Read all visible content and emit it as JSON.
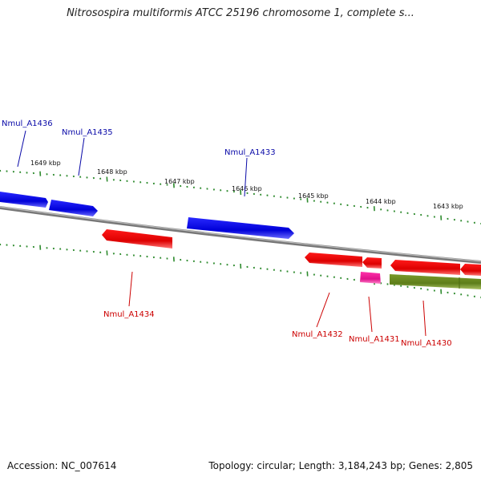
{
  "title": "Nitrosospira multiformis ATCC 25196 chromosome 1, complete s...",
  "footer": {
    "accession": "Accession: NC_007614",
    "summary": "Topology: circular; Length: 3,184,243 bp; Genes: 2,805"
  },
  "colors": {
    "blue": "#1010e0",
    "red": "#ee0000",
    "magenta": "#ee1199",
    "olive": "#6b8e23",
    "backbone": "#888888",
    "tick": "#2e8b2e"
  },
  "kbp_ticks": [
    {
      "label": "1649 kbp"
    },
    {
      "label": "1648 kbp"
    },
    {
      "label": "1647 kbp"
    },
    {
      "label": "1646 kbp"
    },
    {
      "label": "1645 kbp"
    },
    {
      "label": "1644 kbp"
    },
    {
      "label": "1643 kbp"
    }
  ],
  "genes": [
    {
      "name": "Nmul_A1436",
      "strand": "forward",
      "color": "blue"
    },
    {
      "name": "Nmul_A1435",
      "strand": "forward",
      "color": "blue"
    },
    {
      "name": "Nmul_A1433",
      "strand": "forward",
      "color": "blue"
    },
    {
      "name": "Nmul_A1434",
      "strand": "reverse",
      "color": "red"
    },
    {
      "name": "Nmul_A1432",
      "strand": "reverse",
      "color": "red"
    },
    {
      "name": "Nmul_A1431",
      "strand": "reverse",
      "color": "magenta"
    },
    {
      "name": "Nmul_A1430",
      "strand": "reverse",
      "color": "red"
    }
  ]
}
